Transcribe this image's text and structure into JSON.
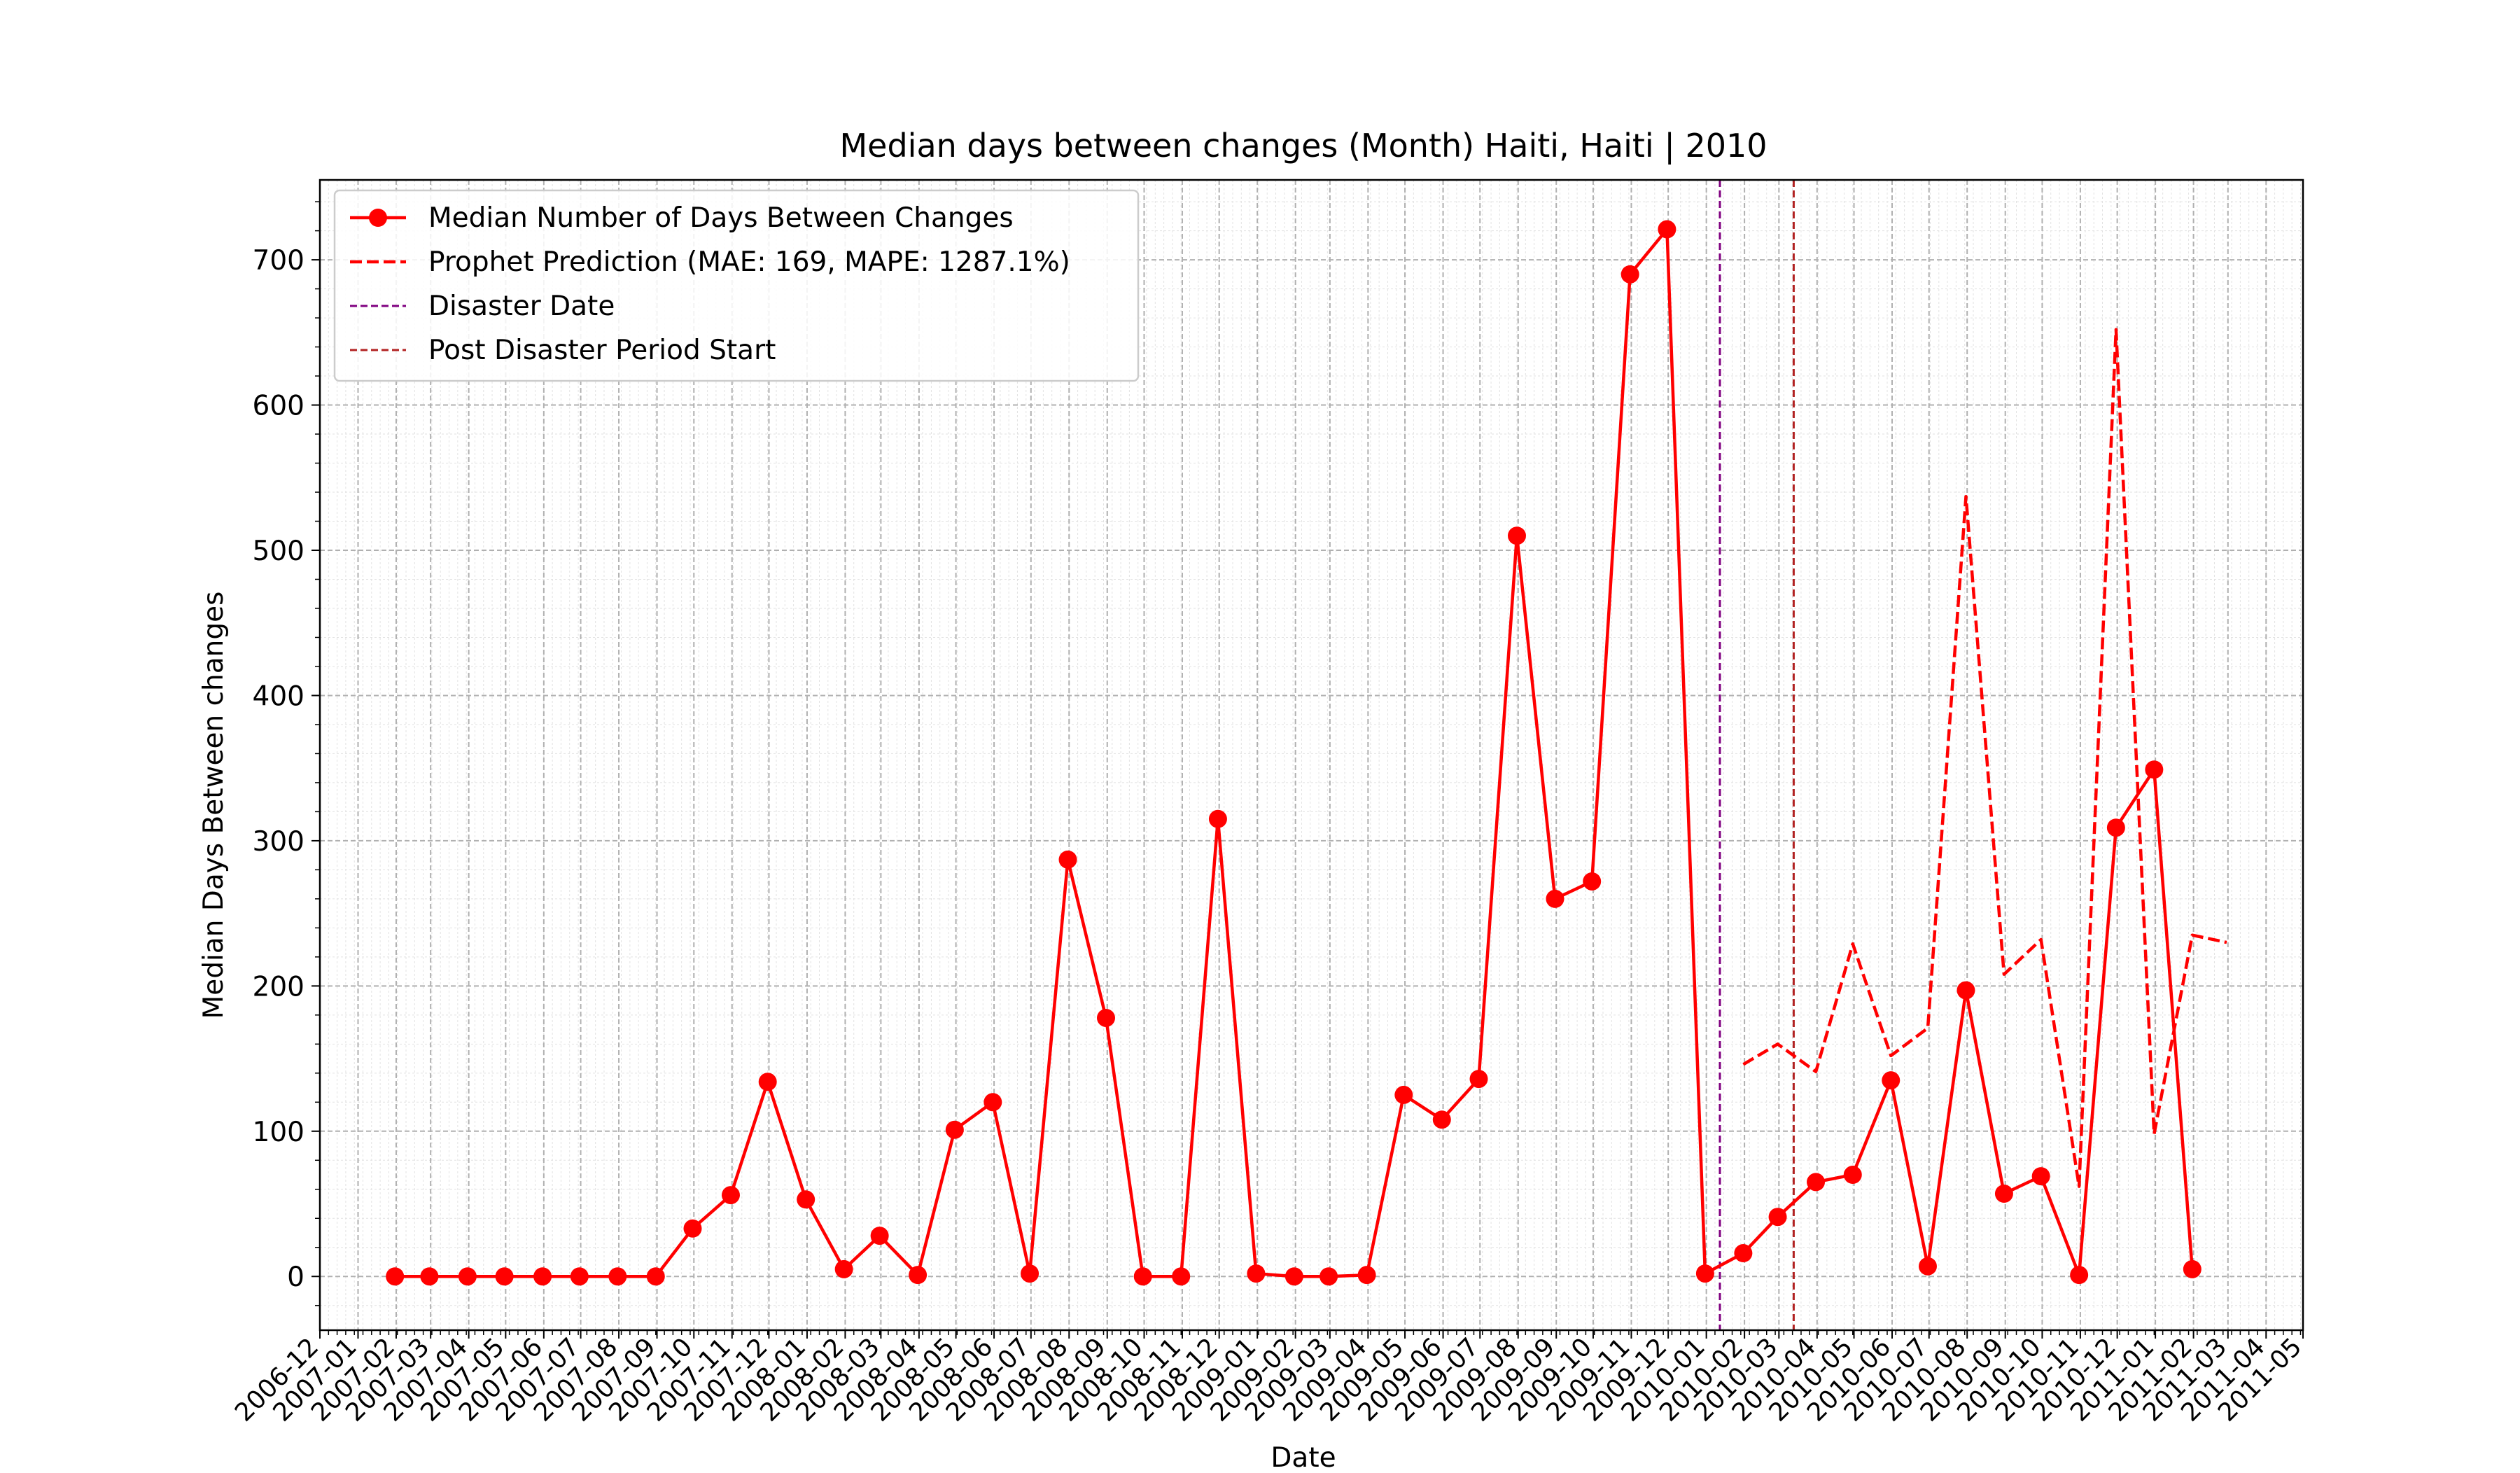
{
  "chart_data": {
    "type": "line",
    "title": "Median days between changes (Month) Haiti, Haiti | 2010",
    "xlabel": "Date",
    "ylabel": "Median Days Between changes",
    "xlim": [
      "2006-12",
      "2011-05"
    ],
    "ylim": [
      -37,
      755
    ],
    "yticks": [
      0,
      100,
      200,
      300,
      400,
      500,
      600,
      700
    ],
    "xtick_labels": [
      "2006-12",
      "2007-01",
      "2007-02",
      "2007-03",
      "2007-04",
      "2007-05",
      "2007-06",
      "2007-07",
      "2007-08",
      "2007-09",
      "2007-10",
      "2007-11",
      "2007-12",
      "2008-01",
      "2008-02",
      "2008-03",
      "2008-04",
      "2008-05",
      "2008-06",
      "2008-07",
      "2008-08",
      "2008-09",
      "2008-10",
      "2008-11",
      "2008-12",
      "2009-01",
      "2009-02",
      "2009-03",
      "2009-04",
      "2009-05",
      "2009-06",
      "2009-07",
      "2009-08",
      "2009-09",
      "2009-10",
      "2009-11",
      "2009-12",
      "2010-01",
      "2010-02",
      "2010-03",
      "2010-04",
      "2010-05",
      "2010-06",
      "2010-07",
      "2010-08",
      "2010-09",
      "2010-10",
      "2010-11",
      "2010-12",
      "2011-01",
      "2011-02",
      "2011-03",
      "2011-04",
      "2011-05"
    ],
    "grid": true,
    "legend_position": "top-left",
    "series": [
      {
        "name": "Median Number of Days Between Changes",
        "color": "#ff0000",
        "style": "solid-markers",
        "x": [
          "2007-01-31",
          "2007-02-28",
          "2007-03-31",
          "2007-04-30",
          "2007-05-31",
          "2007-06-30",
          "2007-07-31",
          "2007-08-31",
          "2007-09-30",
          "2007-10-31",
          "2007-11-30",
          "2007-12-31",
          "2008-01-31",
          "2008-02-29",
          "2008-03-31",
          "2008-04-30",
          "2008-05-31",
          "2008-06-30",
          "2008-07-31",
          "2008-08-31",
          "2008-09-30",
          "2008-10-31",
          "2008-11-30",
          "2008-12-31",
          "2009-01-31",
          "2009-02-28",
          "2009-03-31",
          "2009-04-30",
          "2009-05-31",
          "2009-06-30",
          "2009-07-31",
          "2009-08-31",
          "2009-09-30",
          "2009-10-31",
          "2009-11-30",
          "2009-12-31",
          "2010-01-31",
          "2010-02-28",
          "2010-03-31",
          "2010-04-30",
          "2010-05-31",
          "2010-06-30",
          "2010-07-31",
          "2010-08-31",
          "2010-09-30",
          "2010-10-31",
          "2010-11-30",
          "2010-12-31",
          "2011-01-31"
        ],
        "values": [
          0,
          0,
          0,
          0,
          0,
          0,
          0,
          0,
          33,
          56,
          134,
          53,
          5,
          28,
          1,
          101,
          120,
          2,
          287,
          178,
          0,
          0,
          315,
          2,
          0,
          0,
          1,
          125,
          108,
          136,
          510,
          260,
          272,
          690,
          721,
          2,
          16,
          41,
          65,
          70,
          135,
          7,
          197,
          57,
          69,
          1,
          309,
          349,
          5
        ]
      },
      {
        "name": "Prophet Prediction (MAE: 169, MAPE: 1287.1%)",
        "color": "#ff0000",
        "style": "dashed",
        "x": [
          "2010-01-31",
          "2010-02-28",
          "2010-03-31",
          "2010-04-30",
          "2010-05-31",
          "2010-06-30",
          "2010-07-31",
          "2010-08-31",
          "2010-09-30",
          "2010-10-31",
          "2010-11-30",
          "2010-12-31",
          "2011-01-31",
          "2011-02-28"
        ],
        "values": [
          146,
          160,
          141,
          229,
          152,
          171,
          537,
          208,
          232,
          62,
          652,
          98,
          235,
          230
        ]
      }
    ],
    "vlines": [
      {
        "name": "Disaster Date",
        "date": "2010-01-12",
        "color": "#800080"
      },
      {
        "name": "Post Disaster Period Start",
        "date": "2010-03-13",
        "color": "#b22222"
      }
    ]
  }
}
